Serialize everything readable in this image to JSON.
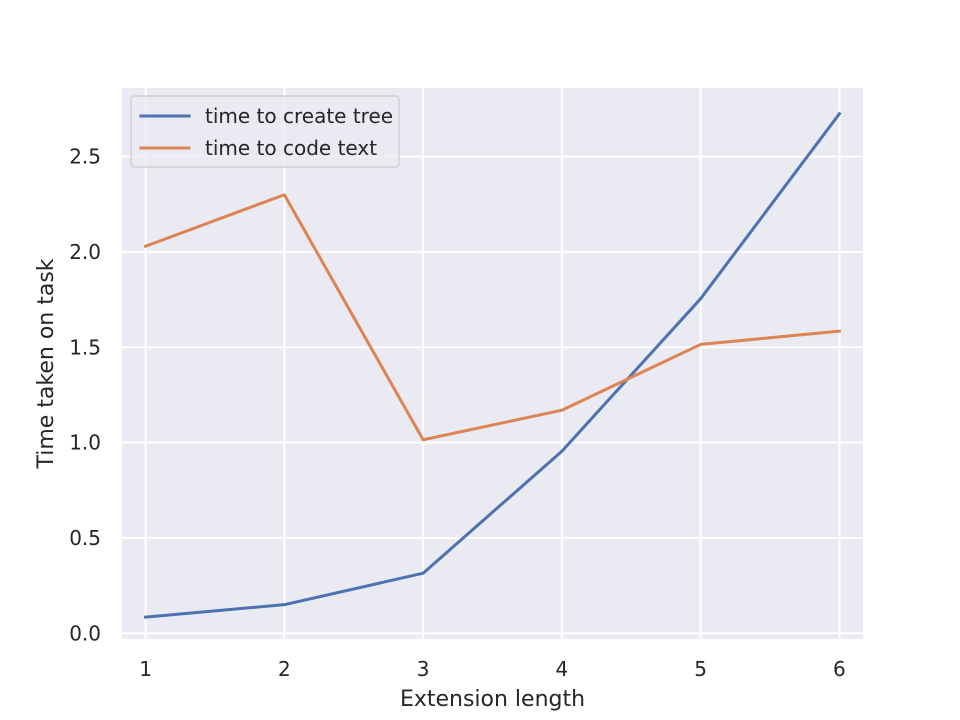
{
  "chart_data": {
    "type": "line",
    "xlabel": "Extension length",
    "ylabel": "Time taken on task",
    "x": [
      1,
      2,
      3,
      4,
      5,
      6
    ],
    "xticks": [
      "1",
      "2",
      "3",
      "4",
      "5",
      "6"
    ],
    "yticks": [
      "0.0",
      "0.5",
      "1.0",
      "1.5",
      "2.0",
      "2.5"
    ],
    "xlim": [
      0.83,
      6.17
    ],
    "ylim": [
      -0.03,
      2.86
    ],
    "grid": true,
    "legend_position": "upper-left",
    "series": [
      {
        "name": "time to create tree",
        "color": "#4c72b0",
        "values": [
          0.085,
          0.15,
          0.315,
          0.955,
          1.755,
          2.725
        ]
      },
      {
        "name": "time to code text",
        "color": "#dd8452",
        "values": [
          2.03,
          2.3,
          1.015,
          1.17,
          1.515,
          1.585
        ]
      }
    ]
  }
}
